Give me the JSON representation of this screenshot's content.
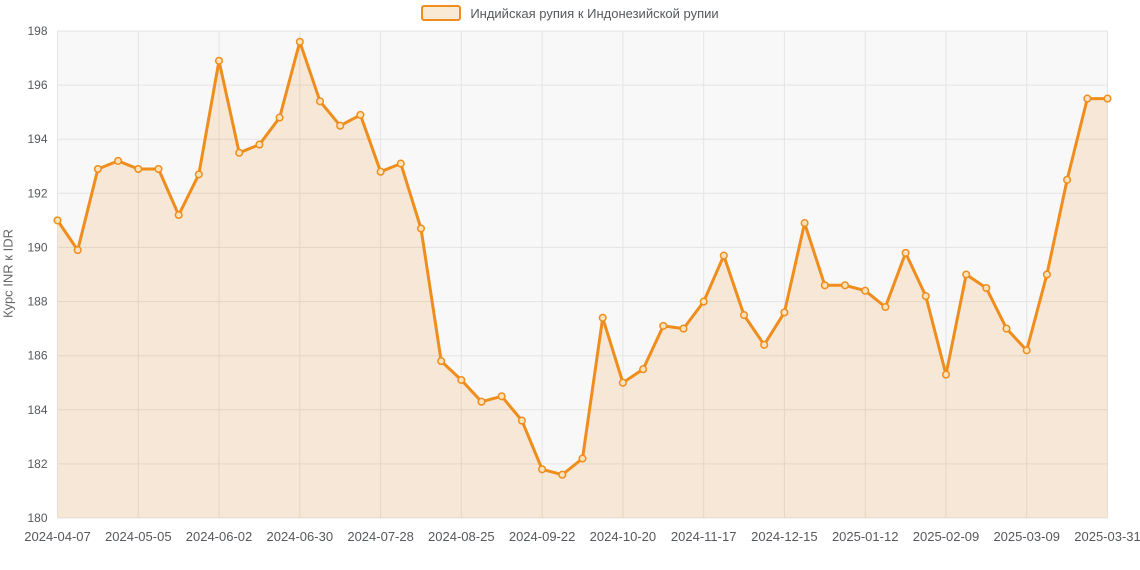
{
  "chart_data": {
    "type": "area",
    "title": "",
    "series_name": "Индийская рупия к Индонезийской рупии",
    "ylabel": "Курс INR к IDR",
    "ylim": [
      180,
      198
    ],
    "y_ticks": [
      180,
      182,
      184,
      186,
      188,
      190,
      192,
      194,
      196,
      198
    ],
    "grid": true,
    "legend_position": "top",
    "x": [
      "2024-04-07",
      "2024-04-14",
      "2024-04-21",
      "2024-04-28",
      "2024-05-05",
      "2024-05-12",
      "2024-05-19",
      "2024-05-26",
      "2024-06-02",
      "2024-06-09",
      "2024-06-16",
      "2024-06-23",
      "2024-06-30",
      "2024-07-07",
      "2024-07-14",
      "2024-07-21",
      "2024-07-28",
      "2024-08-04",
      "2024-08-11",
      "2024-08-18",
      "2024-08-25",
      "2024-09-01",
      "2024-09-08",
      "2024-09-15",
      "2024-09-22",
      "2024-09-29",
      "2024-10-06",
      "2024-10-13",
      "2024-10-20",
      "2024-10-27",
      "2024-11-03",
      "2024-11-10",
      "2024-11-17",
      "2024-11-24",
      "2024-12-01",
      "2024-12-08",
      "2024-12-15",
      "2024-12-22",
      "2024-12-29",
      "2025-01-05",
      "2025-01-12",
      "2025-01-19",
      "2025-01-26",
      "2025-02-02",
      "2025-02-09",
      "2025-02-16",
      "2025-02-23",
      "2025-03-02",
      "2025-03-09",
      "2025-03-16",
      "2025-03-23",
      "2025-03-30",
      "2025-03-31"
    ],
    "values": [
      191.0,
      189.9,
      192.9,
      193.2,
      192.9,
      192.9,
      191.2,
      192.7,
      196.9,
      193.5,
      193.8,
      194.8,
      197.6,
      195.4,
      194.5,
      194.9,
      192.8,
      193.1,
      190.7,
      185.8,
      185.1,
      184.3,
      184.5,
      183.6,
      181.8,
      181.6,
      182.2,
      187.4,
      185.0,
      185.5,
      187.1,
      187.0,
      188.0,
      189.7,
      187.5,
      186.4,
      187.6,
      190.9,
      188.6,
      188.6,
      188.4,
      187.8,
      189.8,
      188.2,
      185.3,
      189.0,
      188.5,
      187.0,
      186.2,
      189.0,
      192.5,
      195.5,
      195.5
    ],
    "x_tick_indices": [
      0,
      4,
      8,
      12,
      16,
      20,
      24,
      28,
      32,
      36,
      40,
      44,
      48,
      52
    ],
    "x_tick_labels": [
      "2024-04-07",
      "2024-05-05",
      "2024-06-02",
      "2024-06-30",
      "2024-07-28",
      "2024-08-25",
      "2024-09-22",
      "2024-10-20",
      "2024-11-17",
      "2024-12-15",
      "2025-01-12",
      "2025-02-09",
      "2025-03-09",
      "2025-03-31"
    ],
    "style": {
      "line_color": "#ef8d1d",
      "area_fill": "rgba(239,141,29,0.16)",
      "marker_fill": "#f9e3bd",
      "plot_bg": "#f8f8f9",
      "grid_color": "#e4e4e4",
      "tick_color": "#55585c",
      "axis_title_color": "#666666",
      "legend_text_color": "#55585c"
    }
  }
}
